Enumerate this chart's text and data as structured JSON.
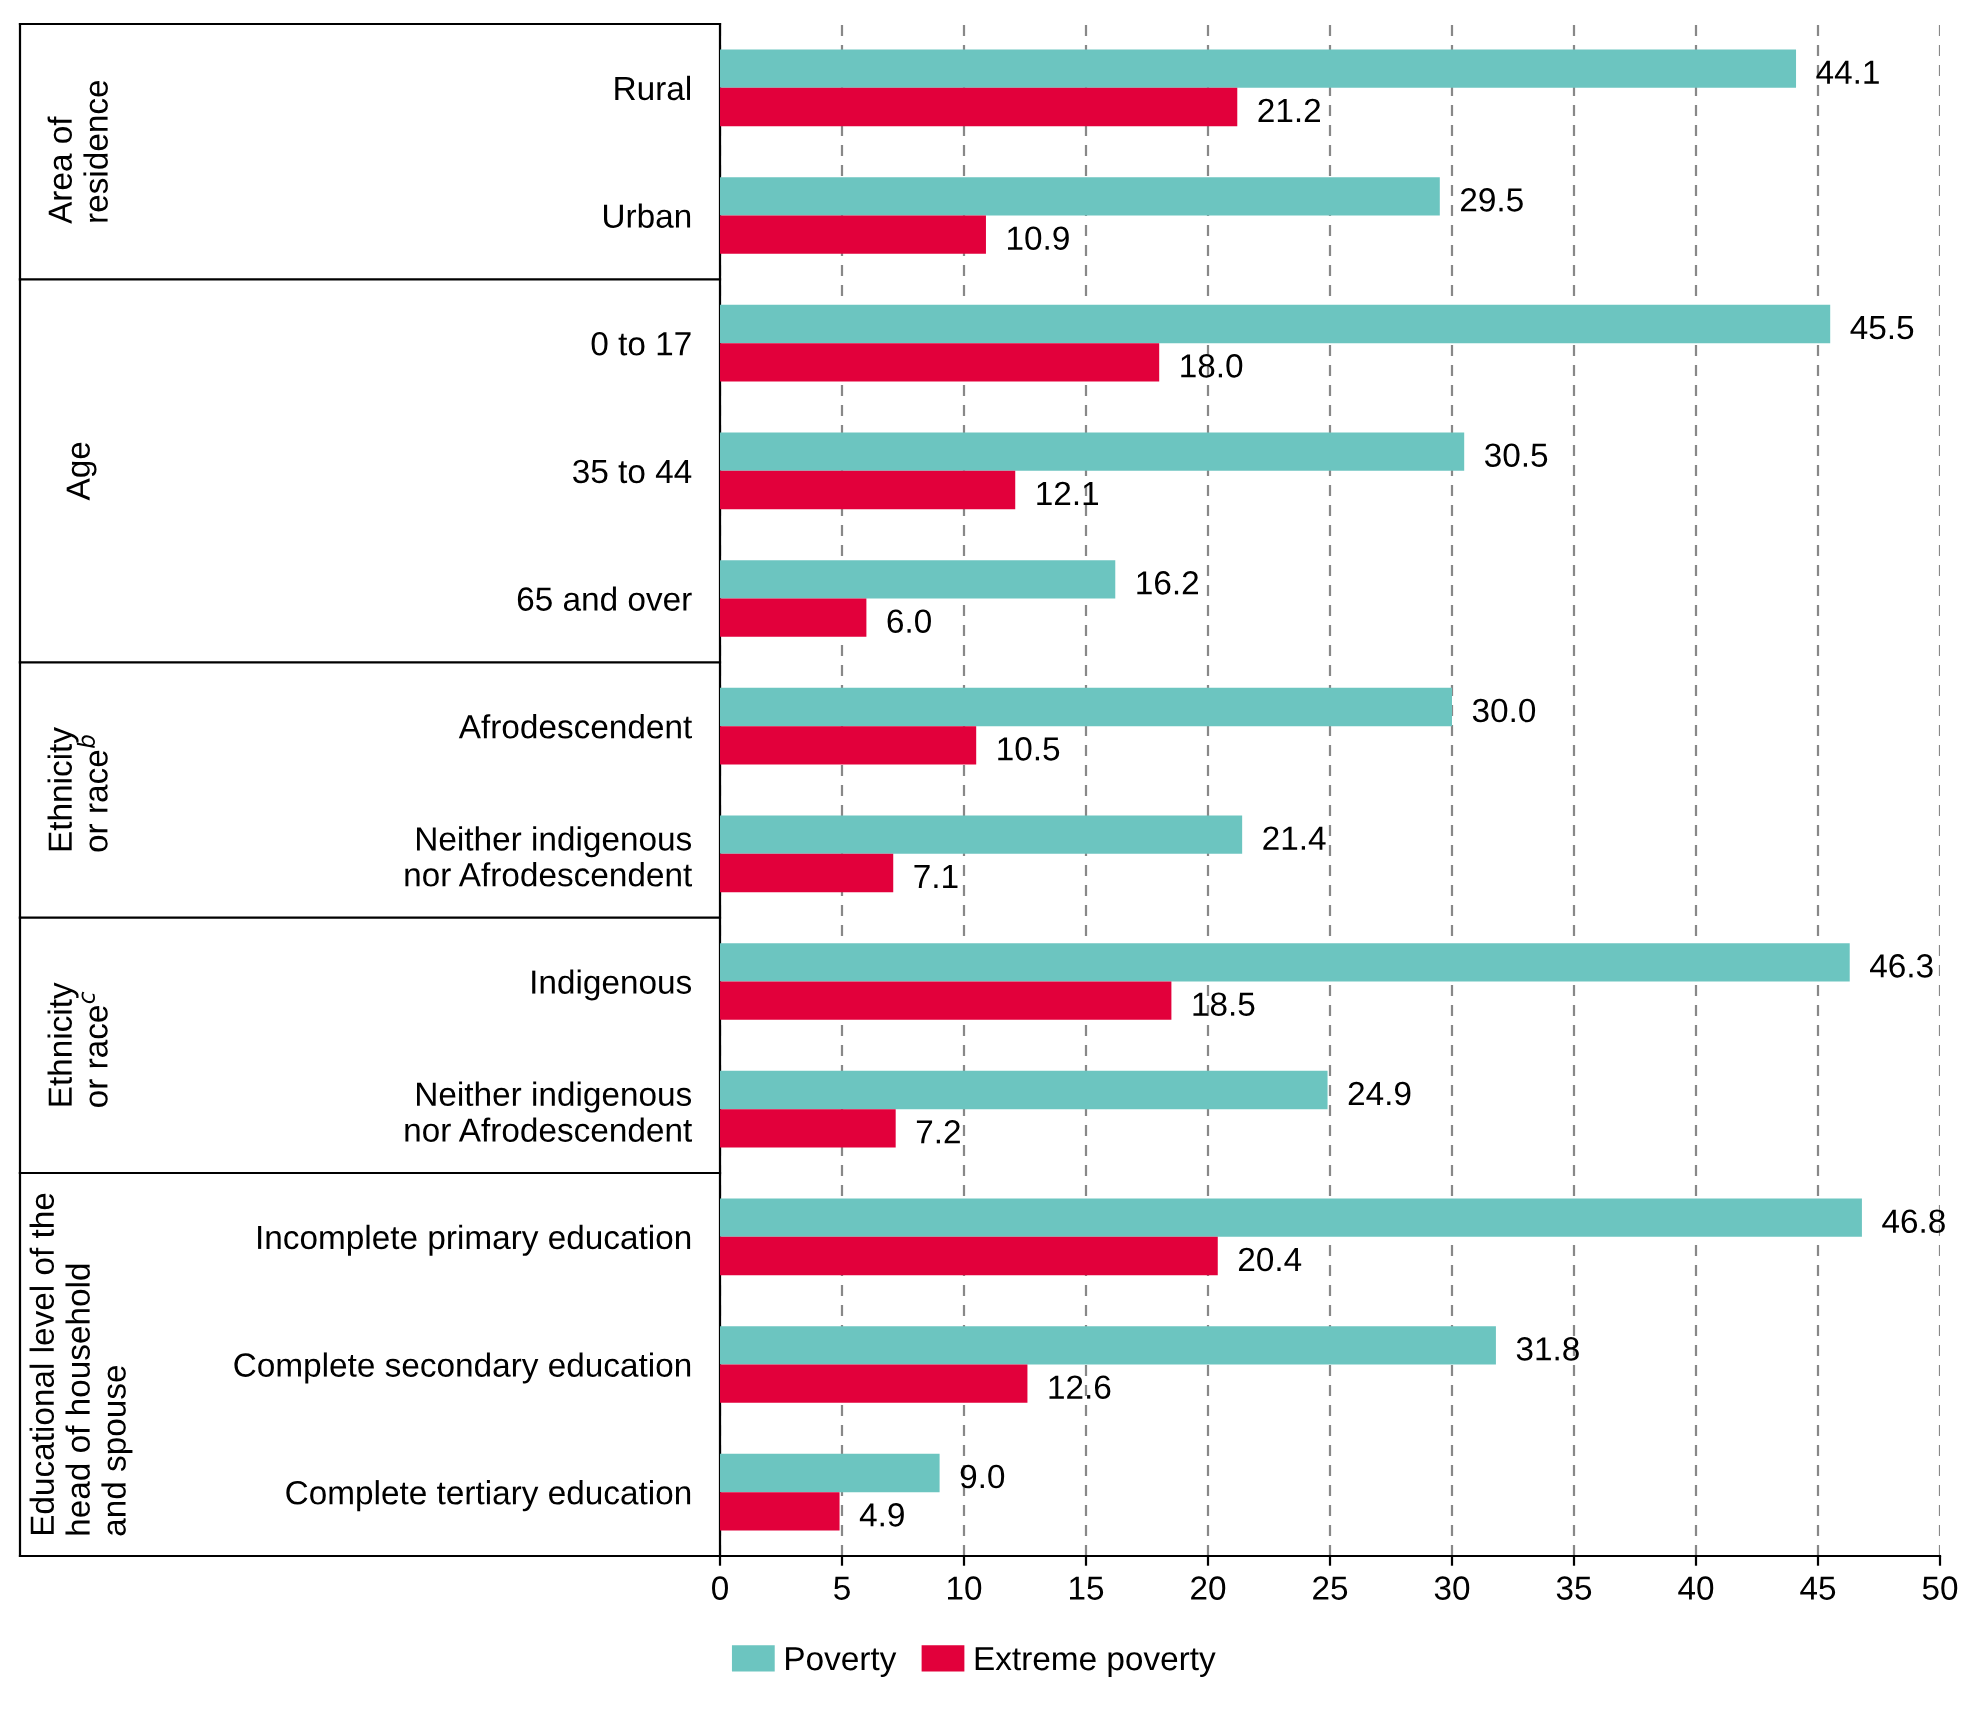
{
  "chart_data": {
    "type": "bar",
    "orientation": "horizontal",
    "categories": [
      "Rural",
      "Urban",
      "0 to 17",
      "35 to 44",
      "65 and over",
      "Afrodescendent",
      "Neither indigenous\nnor Afrodescendent",
      "Indigenous",
      "Neither indigenous\nnor Afrodescendent",
      "Incomplete primary education",
      "Complete secondary education",
      "Complete tertiary education"
    ],
    "series": [
      {
        "name": "Poverty",
        "color": "#6cc5c0",
        "values": [
          44.1,
          29.5,
          45.5,
          30.5,
          16.2,
          30.0,
          21.4,
          46.3,
          24.9,
          46.8,
          31.8,
          9.0
        ],
        "value_labels": [
          "44.1",
          "29.5",
          "45.5",
          "30.5",
          "16.2",
          "30.0",
          "21.4",
          "46.3",
          "24.9",
          "46.8",
          "31.8",
          "9.0"
        ]
      },
      {
        "name": "Extreme poverty",
        "color": "#e2003b",
        "values": [
          21.2,
          10.9,
          18.0,
          12.1,
          6.0,
          10.5,
          7.1,
          18.5,
          7.2,
          20.4,
          12.6,
          4.9
        ],
        "value_labels": [
          "21.2",
          "10.9",
          "18.0",
          "12.1",
          "6.0",
          "10.5",
          "7.1",
          "18.5",
          "7.2",
          "20.4",
          "12.6",
          "4.9"
        ]
      }
    ],
    "annotations": [
      "Area of\nresidence",
      "Age",
      "Ethnicity\nor race$^{b}$",
      "Ethnicity\nor race$^{c}$",
      "Educational level of the\nhead of household\nand spouse"
    ],
    "xlim": [
      0,
      50
    ],
    "xticks": [
      0,
      5,
      10,
      15,
      20,
      25,
      30,
      35,
      40,
      45,
      50
    ],
    "grid": "x",
    "legend": "bottom"
  }
}
